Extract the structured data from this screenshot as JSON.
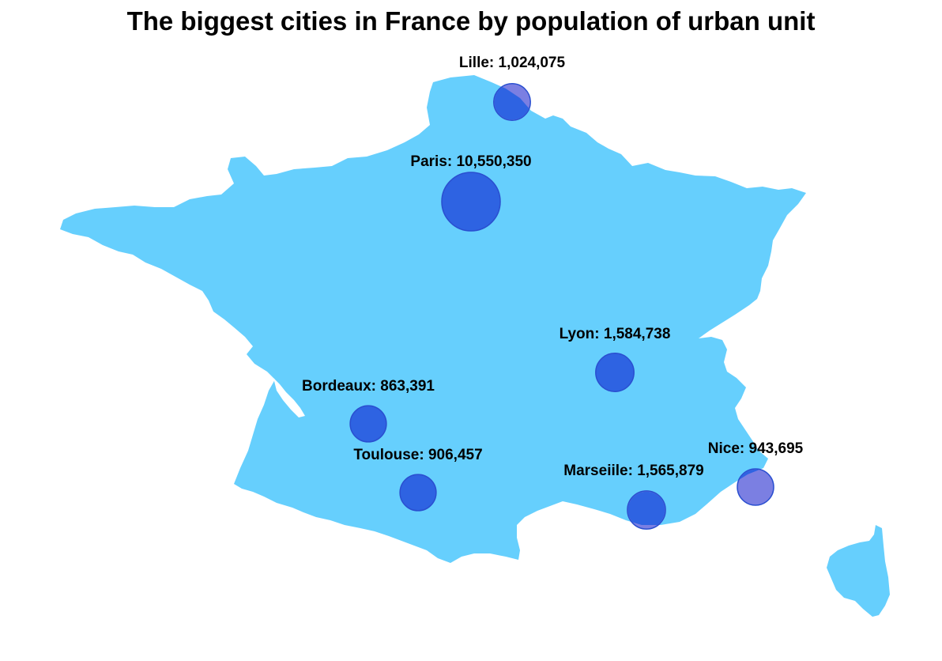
{
  "title": "The biggest cities in France by population of urban unit",
  "colors": {
    "land": "#66CFFD",
    "bubble_fill": "#2E63E2",
    "bubble_stroke": "#2A4FD0",
    "bubble_overlap_fill": "#7B7FE2"
  },
  "cities": [
    {
      "name": "Paris",
      "population": 10550350,
      "label": "Paris: 10,550,350"
    },
    {
      "name": "Lyon",
      "population": 1584738,
      "label": "Lyon: 1,584,738"
    },
    {
      "name": "Marseille",
      "population": 1565879,
      "label": "Marseiile: 1,565,879"
    },
    {
      "name": "Lille",
      "population": 1024075,
      "label": "Lille: 1,024,075"
    },
    {
      "name": "Nice",
      "population": 943695,
      "label": "Nice: 943,695"
    },
    {
      "name": "Toulouse",
      "population": 906457,
      "label": "Toulouse: 906,457"
    },
    {
      "name": "Bordeaux",
      "population": 863391,
      "label": "Bordeaux: 863,391"
    }
  ]
}
